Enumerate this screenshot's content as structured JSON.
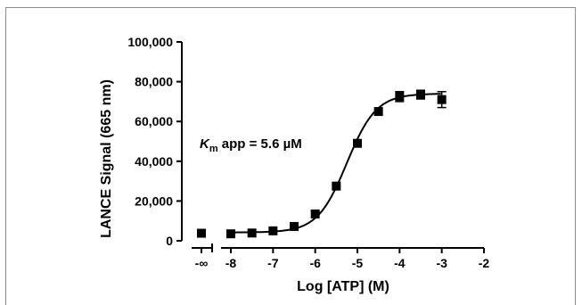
{
  "chart_data": {
    "type": "scatter",
    "xlabel": "Log [ATP] (M)",
    "ylabel": "LANCE Signal (665 nm)",
    "xlim": [
      -8.4,
      -2
    ],
    "ylim": [
      0,
      100000
    ],
    "x_ticks": [
      "-8",
      "-7",
      "-6",
      "-5",
      "-4",
      "-3",
      "-2"
    ],
    "x_tick_values": [
      -8,
      -7,
      -6,
      -5,
      -4,
      -3,
      -2
    ],
    "x_zero_tick": "-∞",
    "y_ticks": [
      "0",
      "20,000",
      "40,000",
      "60,000",
      "80,000",
      "100,000"
    ],
    "y_tick_values": [
      0,
      20000,
      40000,
      60000,
      80000,
      100000
    ],
    "annotation": {
      "symbol": "K",
      "subscript": "m",
      "text": " app = 5.6 µM"
    },
    "series": [
      {
        "zero_point": {
          "y": 3800,
          "err": 600
        },
        "points": [
          {
            "x": -8.0,
            "y": 3500,
            "err": 500
          },
          {
            "x": -7.5,
            "y": 3900,
            "err": 500
          },
          {
            "x": -7.0,
            "y": 5000,
            "err": 500
          },
          {
            "x": -6.5,
            "y": 7200,
            "err": 500
          },
          {
            "x": -6.0,
            "y": 13500,
            "err": 600
          },
          {
            "x": -5.5,
            "y": 27500,
            "err": 800
          },
          {
            "x": -5.0,
            "y": 49000,
            "err": 1000
          },
          {
            "x": -4.5,
            "y": 65000,
            "err": 1200
          },
          {
            "x": -4.0,
            "y": 72500,
            "err": 2500
          },
          {
            "x": -3.5,
            "y": 73500,
            "err": 2200
          },
          {
            "x": -3.0,
            "y": 71000,
            "err": 4000
          }
        ],
        "fit": {
          "bottom": 4200,
          "top": 74000,
          "log_ec50": -5.25,
          "hill": 1.25
        }
      }
    ],
    "grid": false
  }
}
